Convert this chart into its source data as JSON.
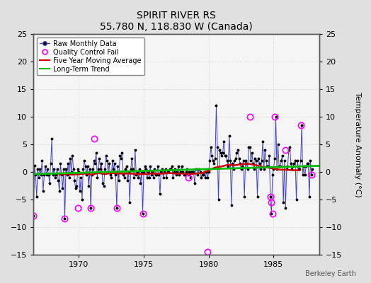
{
  "title": "SPIRIT RIVER RS",
  "subtitle": "55.780 N, 118.830 W (Canada)",
  "ylabel_right": "Temperature Anomaly (°C)",
  "watermark": "Berkeley Earth",
  "ylim": [
    -15,
    25
  ],
  "yticks": [
    -15,
    -10,
    -5,
    0,
    5,
    10,
    15,
    20,
    25
  ],
  "xlim": [
    1966.5,
    1988.5
  ],
  "xticks": [
    1970,
    1975,
    1980,
    1985
  ],
  "fig_bg": "#e0e0e0",
  "plot_bg": "#f5f5f5",
  "raw_color": "#4444bb",
  "raw_dot_color": "#000000",
  "ma_color": "#cc0000",
  "trend_color": "#00bb00",
  "qc_color": "#ff00ff",
  "raw_data_years": [
    1966.083,
    1966.167,
    1966.25,
    1966.333,
    1966.417,
    1966.5,
    1966.583,
    1966.667,
    1966.75,
    1966.833,
    1966.917,
    1967.0,
    1967.083,
    1967.167,
    1967.25,
    1967.333,
    1967.417,
    1967.5,
    1967.583,
    1967.667,
    1967.75,
    1967.833,
    1967.917,
    1968.0,
    1968.083,
    1968.167,
    1968.25,
    1968.333,
    1968.417,
    1968.5,
    1968.583,
    1968.667,
    1968.75,
    1968.833,
    1968.917,
    1969.0,
    1969.083,
    1969.167,
    1969.25,
    1969.333,
    1969.417,
    1969.5,
    1969.583,
    1969.667,
    1969.75,
    1969.833,
    1969.917,
    1970.0,
    1970.083,
    1970.167,
    1970.25,
    1970.333,
    1970.417,
    1970.5,
    1970.583,
    1970.667,
    1970.75,
    1970.833,
    1970.917,
    1971.0,
    1971.083,
    1971.167,
    1971.25,
    1971.333,
    1971.417,
    1971.5,
    1971.583,
    1971.667,
    1971.75,
    1971.833,
    1971.917,
    1972.0,
    1972.083,
    1972.167,
    1972.25,
    1972.333,
    1972.417,
    1972.5,
    1972.583,
    1972.667,
    1972.75,
    1972.833,
    1972.917,
    1973.0,
    1973.083,
    1973.167,
    1973.25,
    1973.333,
    1973.417,
    1973.5,
    1973.583,
    1973.667,
    1973.75,
    1973.833,
    1973.917,
    1974.0,
    1974.083,
    1974.167,
    1974.25,
    1974.333,
    1974.417,
    1974.5,
    1974.583,
    1974.667,
    1974.75,
    1974.833,
    1974.917,
    1975.0,
    1975.083,
    1975.167,
    1975.25,
    1975.333,
    1975.417,
    1975.5,
    1975.583,
    1975.667,
    1975.75,
    1975.833,
    1975.917,
    1976.0,
    1976.083,
    1976.167,
    1976.25,
    1976.333,
    1976.417,
    1976.5,
    1976.583,
    1976.667,
    1976.75,
    1976.833,
    1976.917,
    1977.0,
    1977.083,
    1977.167,
    1977.25,
    1977.333,
    1977.417,
    1977.5,
    1977.583,
    1977.667,
    1977.75,
    1977.833,
    1977.917,
    1978.0,
    1978.083,
    1978.167,
    1978.25,
    1978.333,
    1978.417,
    1978.5,
    1978.583,
    1978.667,
    1978.75,
    1978.833,
    1978.917,
    1979.0,
    1979.083,
    1979.167,
    1979.25,
    1979.333,
    1979.417,
    1979.5,
    1979.583,
    1979.667,
    1979.75,
    1979.833,
    1979.917,
    1980.0,
    1980.083,
    1980.167,
    1980.25,
    1980.333,
    1980.417,
    1980.5,
    1980.583,
    1980.667,
    1980.75,
    1980.833,
    1980.917,
    1981.0,
    1981.083,
    1981.167,
    1981.25,
    1981.333,
    1981.417,
    1981.5,
    1981.583,
    1981.667,
    1981.75,
    1981.833,
    1981.917,
    1982.0,
    1982.083,
    1982.167,
    1982.25,
    1982.333,
    1982.417,
    1982.5,
    1982.583,
    1982.667,
    1982.75,
    1982.833,
    1982.917,
    1983.0,
    1983.083,
    1983.167,
    1983.25,
    1983.333,
    1983.417,
    1983.5,
    1983.583,
    1983.667,
    1983.75,
    1983.833,
    1983.917,
    1984.0,
    1984.083,
    1984.167,
    1984.25,
    1984.333,
    1984.417,
    1984.5,
    1984.583,
    1984.667,
    1984.75,
    1984.833,
    1984.917,
    1985.0,
    1985.083,
    1985.167,
    1985.25,
    1985.333,
    1985.417,
    1985.5,
    1985.583,
    1985.667,
    1985.75,
    1985.833,
    1985.917,
    1986.0,
    1986.083,
    1986.167,
    1986.25,
    1986.333,
    1986.417,
    1986.5,
    1986.583,
    1986.667,
    1986.75,
    1986.833,
    1986.917,
    1987.0,
    1987.083,
    1987.167,
    1987.25,
    1987.333,
    1987.417,
    1987.5,
    1987.583,
    1987.667,
    1987.75,
    1987.833,
    1987.917,
    1988.0
  ],
  "raw_data_values": [
    1.5,
    0.5,
    -0.5,
    0.3,
    -2.5,
    -8.0,
    1.2,
    -0.5,
    -4.5,
    0.5,
    -1.0,
    0.5,
    -0.5,
    2.0,
    -3.5,
    -0.5,
    1.0,
    -0.5,
    0.5,
    -0.5,
    -2.0,
    1.5,
    6.0,
    -0.5,
    0.5,
    -1.0,
    -0.5,
    0.5,
    -1.5,
    -3.5,
    1.5,
    -0.5,
    -3.0,
    0.5,
    -8.5,
    0.5,
    -0.5,
    1.5,
    -1.0,
    2.5,
    0.0,
    3.0,
    0.5,
    -1.5,
    -3.0,
    -2.5,
    0.5,
    0.0,
    -3.5,
    -1.0,
    -5.0,
    0.5,
    2.0,
    1.0,
    -0.5,
    1.0,
    -2.5,
    0.5,
    -6.5,
    -0.5,
    0.5,
    2.0,
    1.5,
    3.5,
    -1.0,
    0.5,
    2.5,
    0.5,
    1.5,
    -2.0,
    -2.5,
    0.5,
    3.0,
    2.0,
    0.0,
    1.5,
    -0.5,
    -1.0,
    2.0,
    0.5,
    1.5,
    -0.5,
    -6.5,
    1.0,
    -1.5,
    3.0,
    2.5,
    3.5,
    -0.5,
    -1.0,
    0.5,
    1.0,
    -1.5,
    0.0,
    -5.5,
    0.5,
    2.5,
    0.5,
    -1.0,
    4.0,
    -0.5,
    0.0,
    -1.0,
    0.5,
    -2.0,
    0.0,
    -7.5,
    0.0,
    1.0,
    0.5,
    -1.0,
    0.0,
    -1.0,
    1.0,
    -0.5,
    0.0,
    -1.0,
    0.5,
    -0.5,
    -0.5,
    1.0,
    -0.5,
    -4.0,
    0.0,
    0.5,
    -1.0,
    0.0,
    0.5,
    -1.0,
    0.0,
    0.0,
    0.5,
    0.5,
    1.0,
    -1.0,
    0.0,
    0.5,
    -0.5,
    0.0,
    1.0,
    -0.5,
    0.0,
    1.0,
    0.0,
    -0.5,
    -0.5,
    0.0,
    0.5,
    -0.5,
    0.0,
    -1.0,
    0.0,
    0.0,
    0.0,
    -2.0,
    0.5,
    0.5,
    -0.5,
    0.5,
    0.0,
    -1.0,
    -0.5,
    -0.5,
    0.0,
    -1.0,
    0.0,
    -1.0,
    0.0,
    2.0,
    4.5,
    3.0,
    2.0,
    1.5,
    2.5,
    12.0,
    4.5,
    -5.0,
    4.0,
    3.5,
    3.0,
    3.5,
    5.5,
    3.0,
    3.0,
    2.0,
    1.0,
    6.5,
    2.0,
    -6.0,
    1.5,
    0.5,
    2.0,
    2.5,
    3.5,
    4.0,
    2.5,
    1.5,
    0.5,
    1.0,
    2.0,
    -4.5,
    2.0,
    1.5,
    0.5,
    4.5,
    4.5,
    2.0,
    3.5,
    1.5,
    0.5,
    2.5,
    2.0,
    -4.5,
    2.5,
    1.5,
    0.5,
    2.0,
    5.5,
    0.5,
    4.0,
    2.0,
    1.0,
    1.0,
    3.0,
    -4.5,
    -7.5,
    -0.5,
    0.5,
    2.5,
    10.0,
    0.5,
    5.0,
    1.0,
    1.0,
    2.0,
    3.0,
    -5.5,
    2.0,
    -6.5,
    0.5,
    1.0,
    4.0,
    4.5,
    1.5,
    0.5,
    1.0,
    1.5,
    2.0,
    -5.0,
    2.0,
    0.5,
    0.5,
    2.0,
    8.5,
    -0.5,
    1.0,
    -0.5,
    1.0,
    1.5,
    1.5,
    -4.5,
    2.0,
    -0.5,
    0.5
  ],
  "qc_fail_years": [
    1966.5,
    1968.917,
    1969.917,
    1970.917,
    1971.167,
    1972.917,
    1974.917,
    1978.417,
    1979.917,
    1983.167,
    1984.75,
    1984.833,
    1984.917,
    1985.083,
    1985.917,
    1987.083,
    1987.917
  ],
  "qc_fail_values": [
    -8.0,
    -8.5,
    -6.5,
    -6.5,
    6.0,
    -6.5,
    -7.5,
    -1.0,
    -14.5,
    10.0,
    -4.5,
    -5.5,
    -7.5,
    10.0,
    4.0,
    8.5,
    -0.5
  ],
  "trend_x": [
    1966.5,
    1988.5
  ],
  "trend_y": [
    -0.4,
    1.1
  ],
  "ma_years": [
    1968.5,
    1969.0,
    1969.5,
    1970.0,
    1970.5,
    1971.0,
    1971.5,
    1972.0,
    1972.5,
    1973.0,
    1973.5,
    1974.0,
    1974.5,
    1975.0,
    1975.5,
    1976.0,
    1976.5,
    1977.0,
    1977.5,
    1978.0,
    1978.5,
    1979.0,
    1979.5,
    1980.0,
    1980.5,
    1981.0,
    1981.5,
    1982.0,
    1982.5,
    1983.0,
    1983.5,
    1984.0,
    1984.5,
    1985.0,
    1985.5,
    1986.0,
    1986.5,
    1987.0
  ],
  "ma_values": [
    -0.5,
    -0.4,
    -0.5,
    -0.4,
    -0.3,
    -0.5,
    -0.2,
    -0.4,
    -0.2,
    -0.3,
    -0.3,
    -0.3,
    -0.4,
    -0.4,
    -0.3,
    -0.3,
    -0.3,
    -0.2,
    -0.3,
    -0.3,
    -0.4,
    -0.3,
    -0.2,
    0.3,
    0.8,
    1.0,
    1.3,
    1.2,
    1.4,
    1.5,
    1.3,
    1.0,
    0.8,
    0.6,
    0.4,
    0.4,
    0.3,
    0.3
  ]
}
